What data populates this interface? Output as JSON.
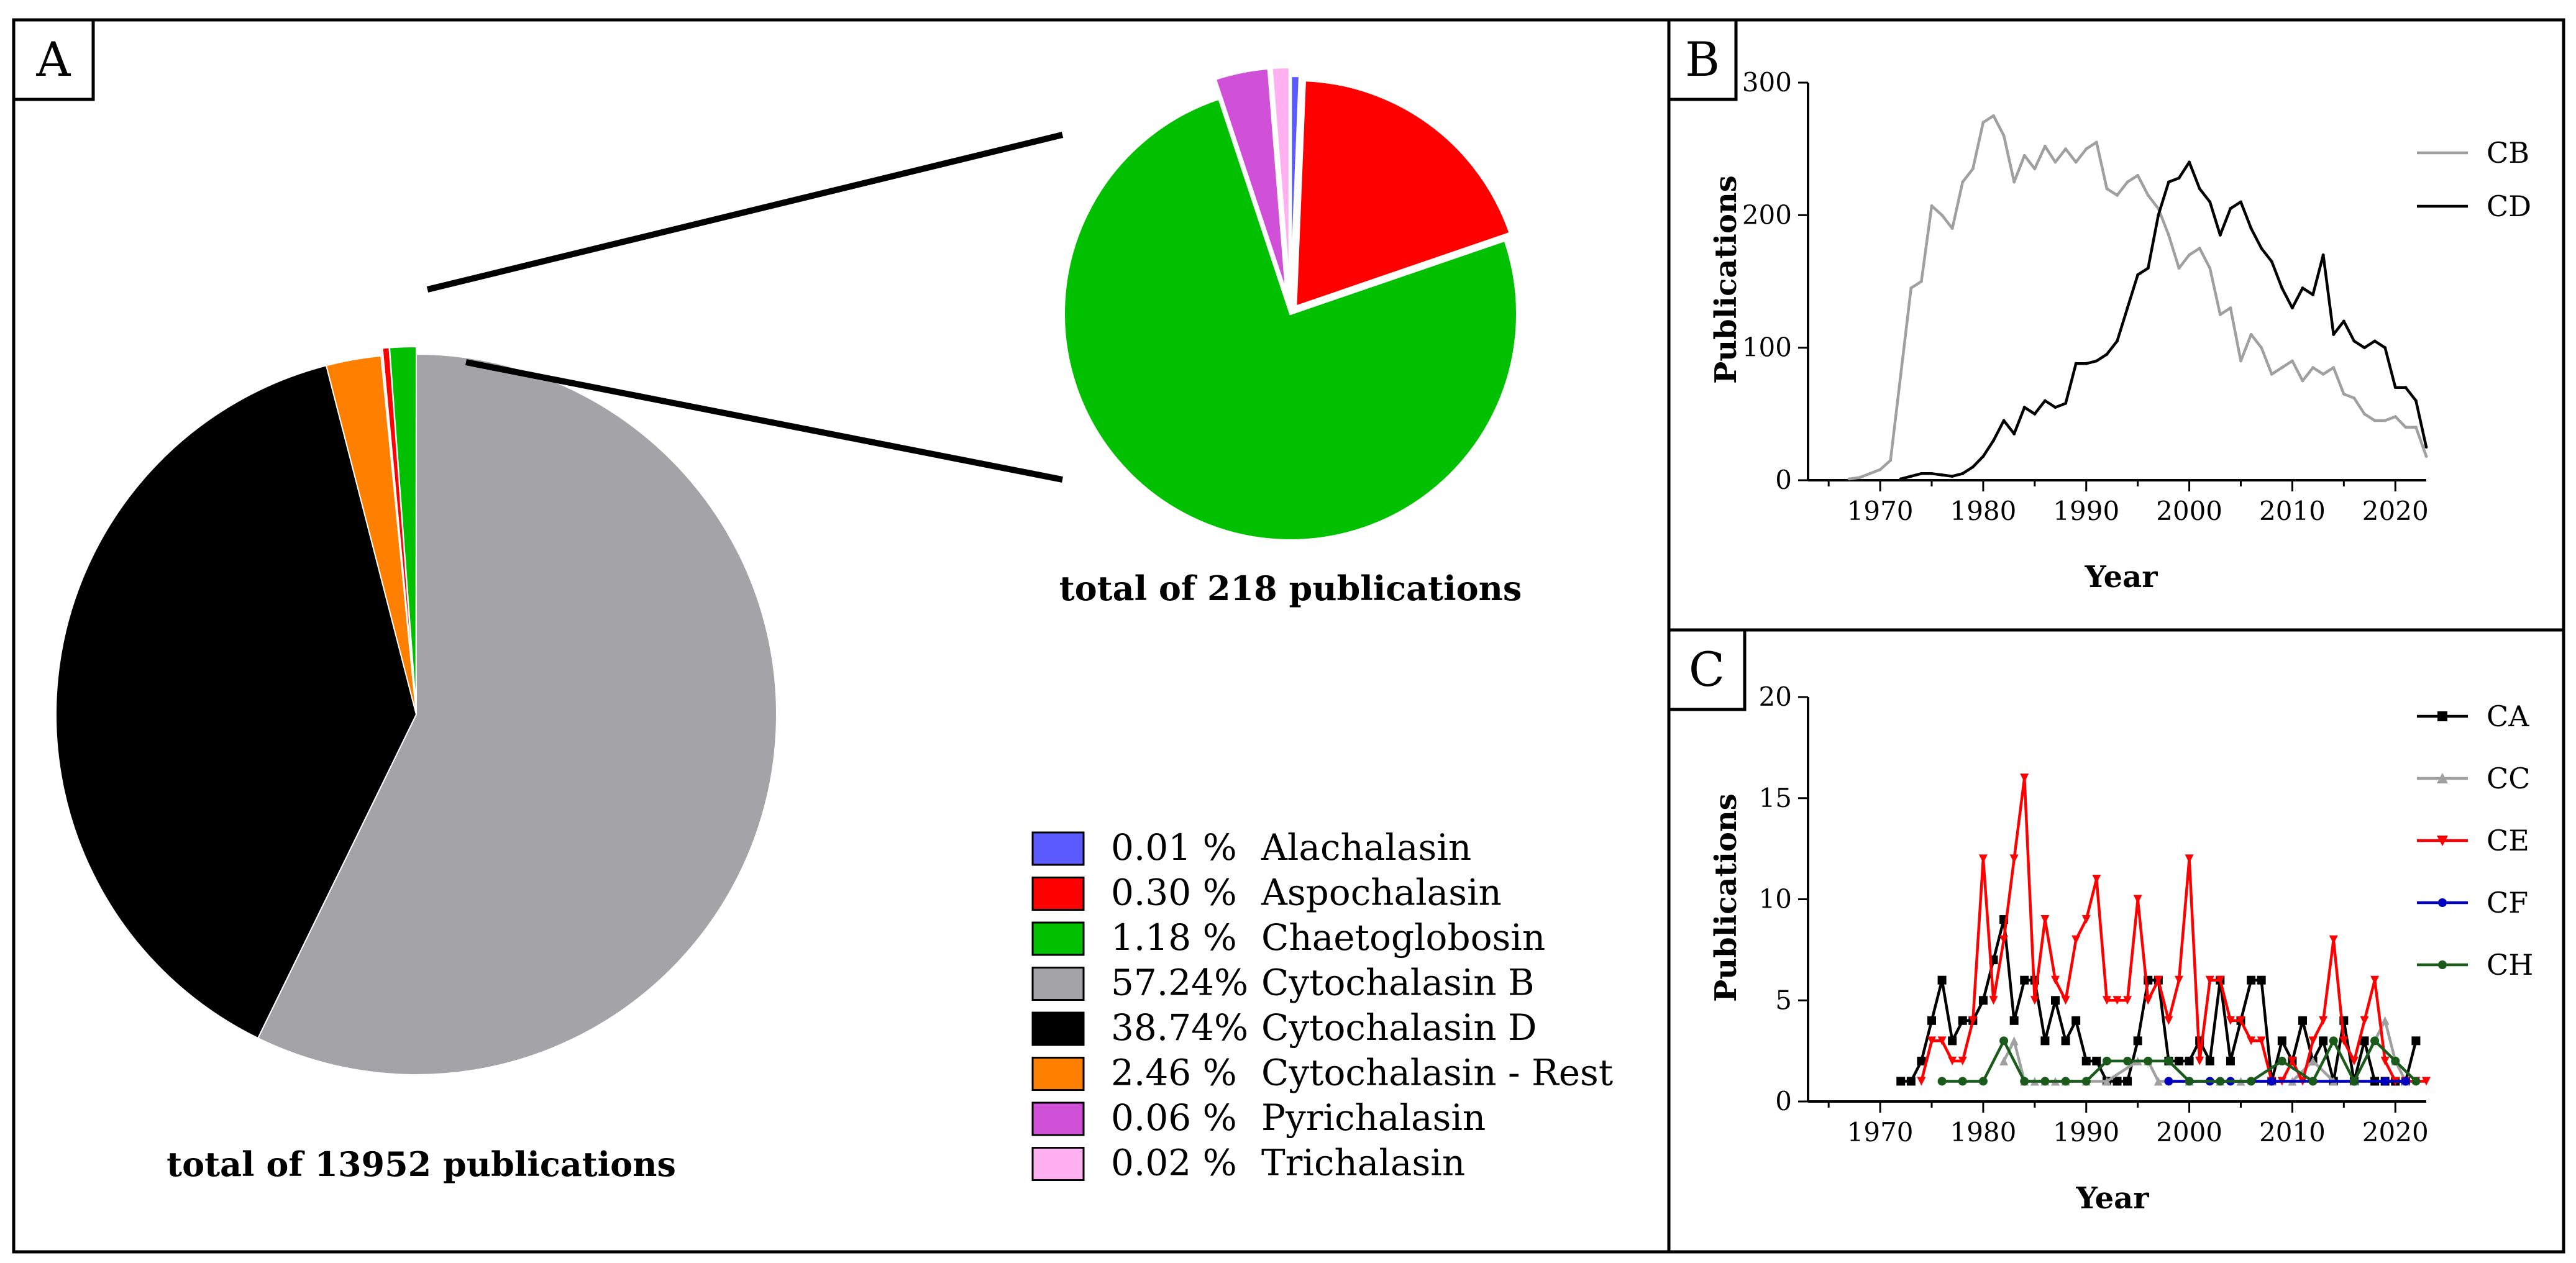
{
  "panels": {
    "a": {
      "label": "A"
    },
    "b": {
      "label": "B"
    },
    "c": {
      "label": "C"
    }
  },
  "colors": {
    "alachalasin": "#5a5aff",
    "aspochalasin": "#ff0000",
    "chaetoglobosin": "#00c000",
    "cytochalasin_b": "#a4a4a8",
    "cytochalasin_d": "#000000",
    "cytochalasin_rest": "#ff8000",
    "pyrichalasin": "#d050d8",
    "trichalasin": "#ffb0f0",
    "cb": "#a0a0a0",
    "cd": "#000000",
    "ca": "#000000",
    "cc": "#a0a0a0",
    "ce": "#ff0000",
    "cf": "#0000c0",
    "ch": "#1a5a1a"
  },
  "chart_data": [
    {
      "id": "main-pie",
      "type": "pie",
      "caption": "total of 13952 publications",
      "labels": [
        "Alachalasin",
        "Aspochalasin",
        "Chaetoglobosin",
        "Cytochalasin B",
        "Cytochalasin D",
        "Cytochalasin - Rest",
        "Pyrichalasin",
        "Trichalasin"
      ],
      "percent_labels": [
        "0.01  %",
        "0.30  %",
        "1.18  %",
        "57.24%",
        "38.74%",
        "2.46  %",
        "0.06  %",
        "0.02  %"
      ],
      "values": [
        0.01,
        0.3,
        1.18,
        57.24,
        38.74,
        2.46,
        0.06,
        0.02
      ],
      "colors": [
        "#5a5aff",
        "#ff0000",
        "#00c000",
        "#a4a4a8",
        "#000000",
        "#ff8000",
        "#d050d8",
        "#ffb0f0"
      ]
    },
    {
      "id": "zoom-pie",
      "type": "pie",
      "caption": "total of 218 publications",
      "labels": [
        "Alachalasin",
        "Aspochalasin",
        "Chaetoglobosin",
        "Pyrichalasin",
        "Trichalasin"
      ],
      "values": [
        0.01,
        0.3,
        1.18,
        0.06,
        0.02
      ],
      "colors": [
        "#5a5aff",
        "#ff0000",
        "#00c000",
        "#d050d8",
        "#ffb0f0"
      ]
    },
    {
      "id": "chart-b",
      "type": "line",
      "xlabel": "Year",
      "ylabel": "Publications",
      "xlim": [
        1963,
        2023
      ],
      "ylim": [
        0,
        300
      ],
      "xticks": [
        1970,
        1980,
        1990,
        2000,
        2010,
        2020
      ],
      "yticks": [
        0,
        100,
        200,
        300
      ],
      "series": [
        {
          "name": "CB",
          "color": "#a0a0a0",
          "x": [
            1967,
            1968,
            1969,
            1970,
            1971,
            1972,
            1973,
            1974,
            1975,
            1976,
            1977,
            1978,
            1979,
            1980,
            1981,
            1982,
            1983,
            1984,
            1985,
            1986,
            1987,
            1988,
            1989,
            1990,
            1991,
            1992,
            1993,
            1994,
            1995,
            1996,
            1997,
            1998,
            1999,
            2000,
            2001,
            2002,
            2003,
            2004,
            2005,
            2006,
            2007,
            2008,
            2009,
            2010,
            2011,
            2012,
            2013,
            2014,
            2015,
            2016,
            2017,
            2018,
            2019,
            2020,
            2021,
            2022,
            2023
          ],
          "y": [
            1,
            2,
            5,
            8,
            15,
            80,
            145,
            150,
            207,
            200,
            190,
            225,
            235,
            270,
            275,
            260,
            225,
            245,
            235,
            252,
            240,
            250,
            240,
            250,
            255,
            220,
            215,
            225,
            230,
            215,
            205,
            185,
            160,
            170,
            175,
            160,
            125,
            130,
            90,
            110,
            100,
            80,
            85,
            90,
            75,
            85,
            80,
            85,
            65,
            62,
            50,
            45,
            45,
            48,
            40,
            40,
            18
          ]
        },
        {
          "name": "CD",
          "color": "#000000",
          "x": [
            1972,
            1973,
            1974,
            1975,
            1976,
            1977,
            1978,
            1979,
            1980,
            1981,
            1982,
            1983,
            1984,
            1985,
            1986,
            1987,
            1988,
            1989,
            1990,
            1991,
            1992,
            1993,
            1994,
            1995,
            1996,
            1997,
            1998,
            1999,
            2000,
            2001,
            2002,
            2003,
            2004,
            2005,
            2006,
            2007,
            2008,
            2009,
            2010,
            2011,
            2012,
            2013,
            2014,
            2015,
            2016,
            2017,
            2018,
            2019,
            2020,
            2021,
            2022,
            2023
          ],
          "y": [
            1,
            3,
            5,
            5,
            4,
            3,
            5,
            10,
            18,
            30,
            45,
            35,
            55,
            50,
            60,
            55,
            58,
            88,
            88,
            90,
            95,
            105,
            130,
            155,
            160,
            200,
            225,
            228,
            240,
            220,
            210,
            185,
            205,
            210,
            190,
            175,
            165,
            145,
            130,
            145,
            140,
            170,
            110,
            120,
            105,
            100,
            105,
            100,
            70,
            70,
            60,
            25
          ]
        }
      ]
    },
    {
      "id": "chart-c",
      "type": "line",
      "xlabel": "Year",
      "ylabel": "Publications",
      "xlim": [
        1963,
        2023
      ],
      "ylim": [
        0,
        20
      ],
      "xticks": [
        1970,
        1980,
        1990,
        2000,
        2010,
        2020
      ],
      "yticks": [
        0,
        5,
        10,
        15,
        20
      ],
      "series": [
        {
          "name": "CA",
          "color": "#000000",
          "marker": "square",
          "x": [
            1972,
            1973,
            1974,
            1975,
            1976,
            1977,
            1978,
            1979,
            1980,
            1981,
            1982,
            1983,
            1984,
            1985,
            1986,
            1987,
            1988,
            1989,
            1990,
            1991,
            1992,
            1993,
            1994,
            1995,
            1996,
            1997,
            1998,
            1999,
            2000,
            2001,
            2002,
            2003,
            2004,
            2005,
            2006,
            2007,
            2008,
            2009,
            2010,
            2011,
            2012,
            2013,
            2014,
            2015,
            2016,
            2017,
            2018,
            2019,
            2020,
            2021,
            2022
          ],
          "y": [
            1,
            1,
            2,
            4,
            6,
            3,
            4,
            4,
            5,
            7,
            9,
            4,
            6,
            6,
            3,
            5,
            3,
            4,
            2,
            2,
            1,
            1,
            1,
            3,
            6,
            6,
            2,
            2,
            2,
            3,
            2,
            6,
            2,
            4,
            6,
            6,
            1,
            3,
            2,
            4,
            2,
            3,
            1,
            4,
            1,
            3,
            1,
            1,
            1,
            1,
            3
          ]
        },
        {
          "name": "CC",
          "color": "#a0a0a0",
          "marker": "triangle",
          "x": [
            1982,
            1983,
            1984,
            1985,
            1986,
            1987,
            1988,
            1990,
            1992,
            1995,
            1996,
            1997,
            2000,
            2003,
            2005,
            2008,
            2010,
            2012,
            2014,
            2016,
            2018,
            2019,
            2020,
            2021
          ],
          "y": [
            2,
            3,
            1,
            1,
            1,
            1,
            1,
            1,
            1,
            2,
            2,
            1,
            1,
            1,
            1,
            1,
            1,
            2,
            1,
            1,
            3,
            4,
            2,
            1
          ]
        },
        {
          "name": "CE",
          "color": "#ff0000",
          "marker": "down-triangle",
          "x": [
            1974,
            1975,
            1976,
            1977,
            1978,
            1979,
            1980,
            1981,
            1982,
            1983,
            1984,
            1985,
            1986,
            1987,
            1988,
            1989,
            1990,
            1991,
            1992,
            1993,
            1994,
            1995,
            1996,
            1997,
            1998,
            1999,
            2000,
            2001,
            2002,
            2003,
            2004,
            2005,
            2006,
            2007,
            2008,
            2009,
            2010,
            2011,
            2012,
            2013,
            2014,
            2015,
            2016,
            2017,
            2018,
            2019,
            2020,
            2021,
            2022,
            2023
          ],
          "y": [
            1,
            3,
            3,
            2,
            2,
            4,
            12,
            5,
            8,
            12,
            16,
            5,
            9,
            6,
            5,
            8,
            9,
            11,
            5,
            5,
            5,
            10,
            5,
            6,
            4,
            6,
            12,
            2,
            6,
            6,
            4,
            4,
            3,
            3,
            1,
            1,
            2,
            1,
            3,
            4,
            8,
            3,
            2,
            4,
            6,
            2,
            1,
            1,
            1,
            1
          ]
        },
        {
          "name": "CF",
          "color": "#0000c0",
          "marker": "circle",
          "x": [
            1998,
            2000,
            2002,
            2004,
            2008,
            2012,
            2016,
            2019,
            2021
          ],
          "y": [
            1,
            1,
            1,
            1,
            1,
            1,
            1,
            1,
            1
          ]
        },
        {
          "name": "CH",
          "color": "#1a5a1a",
          "marker": "circle",
          "x": [
            1976,
            1978,
            1980,
            1982,
            1984,
            1986,
            1988,
            1990,
            1992,
            1994,
            1996,
            1998,
            2000,
            2003,
            2006,
            2009,
            2012,
            2014,
            2016,
            2018,
            2020,
            2022
          ],
          "y": [
            1,
            1,
            1,
            3,
            1,
            1,
            1,
            1,
            2,
            2,
            2,
            2,
            1,
            1,
            1,
            2,
            1,
            3,
            1,
            3,
            2,
            1
          ]
        }
      ]
    }
  ]
}
